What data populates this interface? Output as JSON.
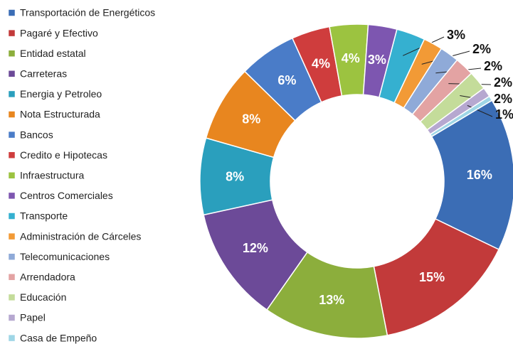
{
  "chart_data": {
    "type": "donut",
    "categories": [
      "Transportación de Energéticos",
      "Pagaré y Efectivo",
      "Entidad estatal",
      "Carreteras",
      "Energia y Petroleo",
      "Nota Estructurada",
      "Bancos",
      "Credito e Hipotecas",
      "Infraestructura",
      "Centros Comerciales",
      "Transporte",
      "Administración de Cárceles",
      "Telecomunicaciones",
      "Arrendadora",
      "Educación",
      "Papel",
      "Casa de Empeño"
    ],
    "values": [
      16,
      15,
      13,
      12,
      8,
      8,
      6,
      4,
      4,
      3,
      3,
      2,
      2,
      2,
      2,
      1,
      0.5
    ],
    "value_labels": [
      "16%",
      "15%",
      "13%",
      "12%",
      "8%",
      "8%",
      "6%",
      "4%",
      "4%",
      "3%",
      "3%",
      "2%",
      "2%",
      "2%",
      "2%",
      "1%",
      null
    ],
    "colors": [
      "#3b6db5",
      "#c23a3a",
      "#8cae3c",
      "#6c4a98",
      "#2a9fbd",
      "#e8861f",
      "#4a7cc8",
      "#cf3d3d",
      "#9cc340",
      "#7d56b0",
      "#35b0d0",
      "#f29a36",
      "#8faad8",
      "#e3a3a3",
      "#c4dc9a",
      "#b6a8d0",
      "#9fd6e6"
    ],
    "legend": "left"
  }
}
